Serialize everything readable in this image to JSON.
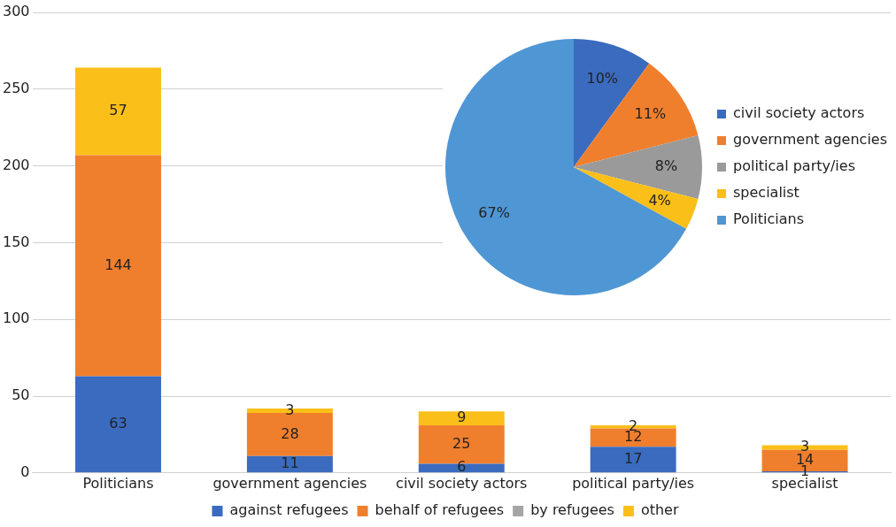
{
  "chart_data": [
    {
      "type": "bar",
      "stacked": true,
      "categories": [
        "Politicians",
        "government agencies",
        "civil society actors",
        "political party/ies",
        "specialist"
      ],
      "series": [
        {
          "name": "against refugees",
          "color": "#3a6bbf",
          "values": [
            63,
            11,
            6,
            17,
            1
          ]
        },
        {
          "name": "behalf of refugees",
          "color": "#f07f2d",
          "values": [
            144,
            28,
            25,
            12,
            14
          ]
        },
        {
          "name": "by refugees",
          "color": "#a5a5a5",
          "values": [
            null,
            null,
            null,
            null,
            null
          ]
        },
        {
          "name": "other",
          "color": "#fbbf1a",
          "values": [
            57,
            3,
            9,
            2,
            3
          ]
        }
      ],
      "ylim": [
        0,
        300
      ],
      "yticks": [
        0,
        50,
        100,
        150,
        200,
        250,
        300
      ],
      "grid": "y",
      "legend": "bottom",
      "data_labels": true
    },
    {
      "type": "pie",
      "categories": [
        "civil society actors",
        "government agencies",
        "political party/ies",
        "specialist",
        "Politicians"
      ],
      "values": [
        10,
        11,
        8,
        4,
        67
      ],
      "colors": [
        "#3a6bbf",
        "#f07f2d",
        "#9a9a9a",
        "#fbbf1a",
        "#4f96d4"
      ],
      "value_labels": [
        "10%",
        "11%",
        "8%",
        "4%",
        "67%"
      ],
      "legend": "right"
    }
  ]
}
